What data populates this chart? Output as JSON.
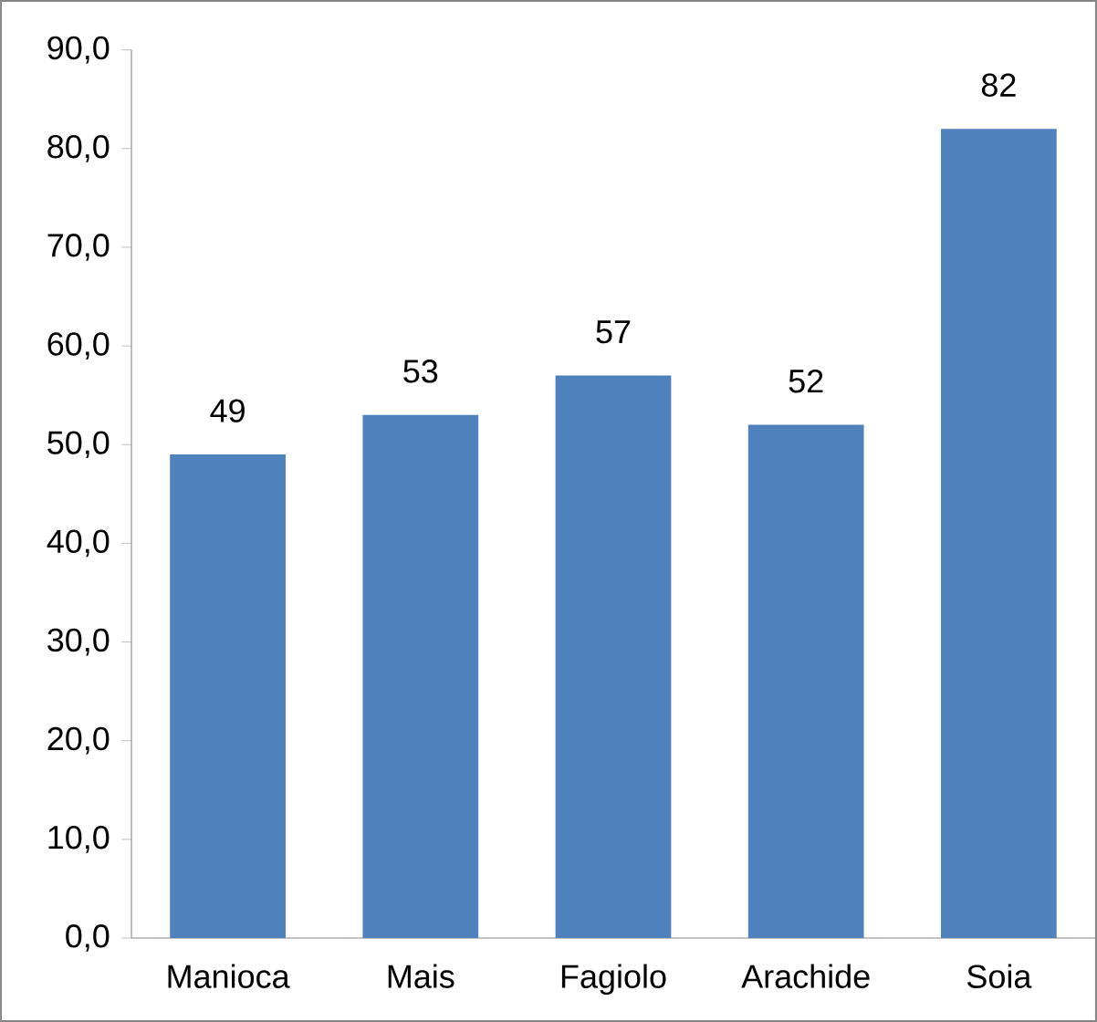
{
  "chart_data": {
    "type": "bar",
    "categories": [
      "Manioca",
      "Mais",
      "Fagiolo",
      "Arachide",
      "Soia"
    ],
    "values": [
      49,
      53,
      57,
      52,
      82
    ],
    "color": "#4f81bd",
    "data_labels": true,
    "ylim": [
      0,
      90
    ],
    "yticks": [
      {
        "value": 0,
        "label": "0,0"
      },
      {
        "value": 10,
        "label": "10,0"
      },
      {
        "value": 20,
        "label": "20,0"
      },
      {
        "value": 30,
        "label": "30,0"
      },
      {
        "value": 40,
        "label": "40,0"
      },
      {
        "value": 50,
        "label": "50,0"
      },
      {
        "value": 60,
        "label": "60,0"
      },
      {
        "value": 70,
        "label": "70,0"
      },
      {
        "value": 80,
        "label": "80,0"
      },
      {
        "value": 90,
        "label": "90,0"
      }
    ],
    "grid": false
  }
}
